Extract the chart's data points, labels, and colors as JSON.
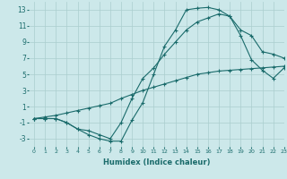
{
  "xlabel": "Humidex (Indice chaleur)",
  "ylabel": "",
  "bg_color": "#cce8ea",
  "line_color": "#1a6b6b",
  "grid_color": "#aacece",
  "ylim": [
    -4,
    14
  ],
  "xlim": [
    -0.5,
    23
  ],
  "yticks": [
    -3,
    -1,
    1,
    3,
    5,
    7,
    9,
    11,
    13
  ],
  "xticks": [
    0,
    1,
    2,
    3,
    4,
    5,
    6,
    7,
    8,
    9,
    10,
    11,
    12,
    13,
    14,
    15,
    16,
    17,
    18,
    19,
    20,
    21,
    22,
    23
  ],
  "line1_x": [
    0,
    1,
    2,
    3,
    4,
    5,
    6,
    7,
    8,
    9,
    10,
    11,
    12,
    13,
    14,
    15,
    16,
    17,
    18,
    19,
    20,
    21,
    22,
    23
  ],
  "line1_y": [
    -0.5,
    -0.5,
    -0.5,
    -1.0,
    -1.8,
    -2.5,
    -3.0,
    -3.3,
    -3.3,
    -0.7,
    1.5,
    5.0,
    8.5,
    10.5,
    13.0,
    13.2,
    13.3,
    13.0,
    12.2,
    9.8,
    6.8,
    5.5,
    4.5,
    5.8
  ],
  "line2_x": [
    0,
    1,
    2,
    3,
    4,
    5,
    6,
    7,
    8,
    9,
    10,
    11,
    12,
    13,
    14,
    15,
    16,
    17,
    18,
    19,
    20,
    21,
    22,
    23
  ],
  "line2_y": [
    -0.5,
    -0.5,
    -0.5,
    -1.0,
    -1.8,
    -2.0,
    -2.5,
    -3.0,
    -1.0,
    2.0,
    4.5,
    5.8,
    7.5,
    9.0,
    10.5,
    11.5,
    12.0,
    12.5,
    12.2,
    10.5,
    9.8,
    7.8,
    7.5,
    7.0
  ],
  "line3_x": [
    0,
    1,
    2,
    3,
    4,
    5,
    6,
    7,
    8,
    9,
    10,
    11,
    12,
    13,
    14,
    15,
    16,
    17,
    18,
    19,
    20,
    21,
    22,
    23
  ],
  "line3_y": [
    -0.5,
    -0.3,
    -0.1,
    0.2,
    0.5,
    0.8,
    1.1,
    1.4,
    2.0,
    2.5,
    3.0,
    3.4,
    3.8,
    4.2,
    4.6,
    5.0,
    5.2,
    5.4,
    5.5,
    5.6,
    5.7,
    5.8,
    5.9,
    6.0
  ]
}
